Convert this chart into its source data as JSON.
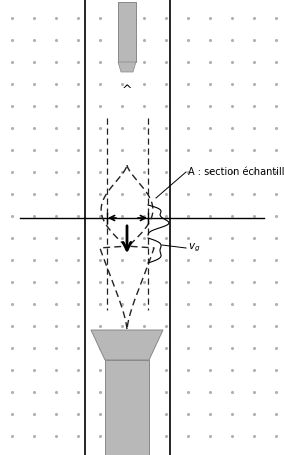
{
  "fig_width": 2.84,
  "fig_height": 4.55,
  "dpi": 100,
  "bg_color": "#ffffff",
  "dot_color": "#b0b0b0",
  "line_color": "#000000",
  "gray_fill": "#b8b8b8",
  "gray_edge": "#888888",
  "dash_color": "#222222",
  "text_A": "A : section échantillonnée",
  "text_vg": "$v_g$"
}
